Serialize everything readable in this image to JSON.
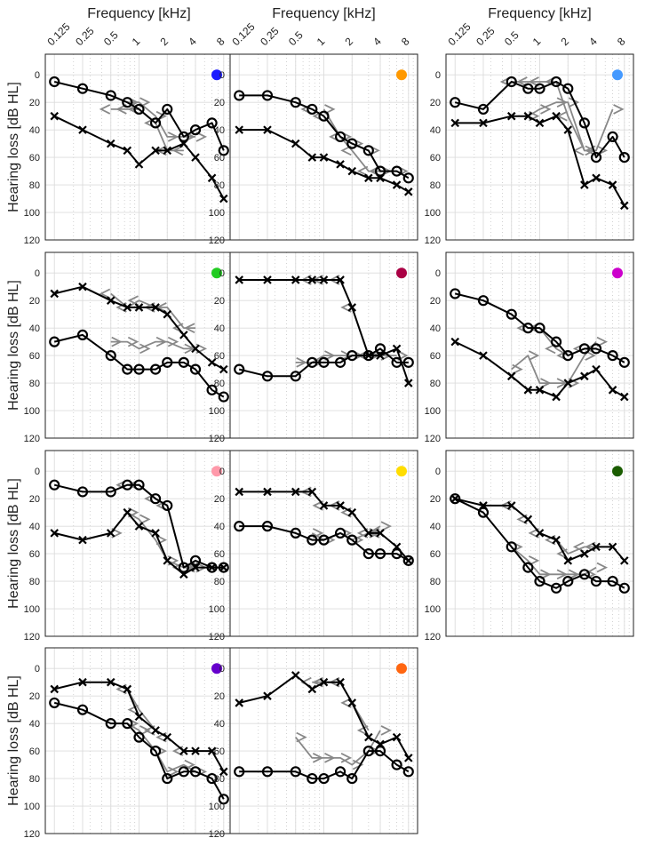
{
  "figure": {
    "x_axis_title": "Frequency [kHz]",
    "y_axis_title": "Hearing loss [dB HL]"
  },
  "chart_data": {
    "type": "line",
    "x_scale": "log",
    "xlim": [
      0.1,
      10
    ],
    "ylim": [
      120,
      -15
    ],
    "y_inverted": true,
    "grid": true,
    "x_ticks": [
      0.125,
      0.25,
      0.5,
      1,
      2,
      4,
      8
    ],
    "x_tick_labels": [
      "0.125",
      "0.25",
      "0.5",
      "1",
      "2",
      "4",
      "8"
    ],
    "y_ticks": [
      0,
      20,
      40,
      60,
      80,
      100,
      120
    ],
    "y_tick_labels": [
      "0",
      "20",
      "40",
      "60",
      "80",
      "100",
      "120"
    ],
    "panels": [
      {
        "marker_color": "#1a1aff",
        "air_o": {
          "x": [
            0.125,
            0.25,
            0.5,
            0.75,
            1,
            1.5,
            2,
            3,
            4,
            6,
            8
          ],
          "y": [
            5,
            10,
            15,
            20,
            25,
            35,
            25,
            45,
            40,
            35,
            55
          ]
        },
        "air_x": {
          "x": [
            0.125,
            0.25,
            0.5,
            0.75,
            1,
            1.5,
            2,
            3,
            4,
            6,
            8
          ],
          "y": [
            30,
            40,
            50,
            55,
            65,
            55,
            55,
            50,
            60,
            75,
            90
          ]
        },
        "bone_lt": {
          "x": [
            0.5,
            0.75,
            1,
            1.5,
            2,
            3
          ],
          "y": [
            25,
            25,
            25,
            35,
            55,
            55
          ]
        },
        "bone_gt": {
          "x": [
            0.75,
            1,
            1.5,
            2,
            3,
            4
          ],
          "y": [
            20,
            20,
            30,
            45,
            45,
            45
          ]
        }
      },
      {
        "marker_color": "#ff9900",
        "air_o": {
          "x": [
            0.125,
            0.25,
            0.5,
            0.75,
            1,
            1.5,
            2,
            3,
            4,
            6,
            8
          ],
          "y": [
            15,
            15,
            20,
            25,
            30,
            45,
            50,
            55,
            70,
            70,
            75
          ]
        },
        "air_x": {
          "x": [
            0.125,
            0.25,
            0.5,
            0.75,
            1,
            1.5,
            2,
            3,
            4,
            6,
            8
          ],
          "y": [
            40,
            40,
            50,
            60,
            60,
            65,
            70,
            75,
            75,
            80,
            85
          ]
        },
        "bone_lt": {
          "x": [
            0.75,
            1,
            1.5,
            2,
            3,
            4
          ],
          "y": [
            25,
            30,
            45,
            55,
            70,
            70
          ]
        },
        "bone_gt": {
          "x": [
            1,
            1.5,
            2,
            3,
            4,
            6
          ],
          "y": [
            25,
            45,
            50,
            55,
            70,
            70
          ]
        }
      },
      {
        "marker_color": "#4499ff",
        "air_o": {
          "x": [
            0.125,
            0.25,
            0.5,
            0.75,
            1,
            1.5,
            2,
            3,
            4,
            6,
            8
          ],
          "y": [
            20,
            25,
            5,
            10,
            10,
            5,
            10,
            35,
            60,
            45,
            60
          ]
        },
        "air_x": {
          "x": [
            0.125,
            0.25,
            0.5,
            0.75,
            1,
            1.5,
            2,
            3,
            4,
            6,
            8
          ],
          "y": [
            35,
            35,
            30,
            30,
            35,
            30,
            40,
            80,
            75,
            80,
            95
          ]
        },
        "bone_lt": {
          "x": [
            0.5,
            0.75,
            1,
            1.5,
            2,
            3,
            4
          ],
          "y": [
            5,
            5,
            5,
            5,
            30,
            55,
            55
          ]
        },
        "bone_gt": {
          "x": [
            0.75,
            1,
            1.5,
            2,
            3,
            4,
            6
          ],
          "y": [
            30,
            25,
            20,
            20,
            55,
            55,
            25
          ]
        }
      },
      {
        "marker_color": "#22cc22",
        "air_o": {
          "x": [
            0.125,
            0.25,
            0.5,
            0.75,
            1,
            1.5,
            2,
            3,
            4,
            6,
            8
          ],
          "y": [
            50,
            45,
            60,
            70,
            70,
            70,
            65,
            65,
            70,
            85,
            90
          ]
        },
        "air_x": {
          "x": [
            0.125,
            0.25,
            0.5,
            0.75,
            1,
            1.5,
            2,
            3,
            4,
            6,
            8
          ],
          "y": [
            15,
            10,
            20,
            25,
            25,
            25,
            30,
            45,
            55,
            65,
            70
          ]
        },
        "bone_lt": {
          "x": [
            0.5,
            0.75,
            1,
            1.5,
            2,
            3,
            4
          ],
          "y": [
            15,
            25,
            20,
            25,
            25,
            40,
            40
          ]
        },
        "bone_gt": {
          "x": [
            0.5,
            0.75,
            1,
            1.5,
            2,
            3,
            4
          ],
          "y": [
            50,
            50,
            55,
            50,
            50,
            55,
            55
          ]
        }
      },
      {
        "marker_color": "#aa0044",
        "air_o": {
          "x": [
            0.125,
            0.25,
            0.5,
            0.75,
            1,
            1.5,
            2,
            3,
            4,
            6,
            8
          ],
          "y": [
            70,
            75,
            75,
            65,
            65,
            65,
            60,
            60,
            55,
            65,
            65
          ]
        },
        "air_x": {
          "x": [
            0.125,
            0.25,
            0.5,
            0.75,
            1,
            1.5,
            2,
            3,
            4,
            6,
            8
          ],
          "y": [
            5,
            5,
            5,
            5,
            5,
            5,
            25,
            60,
            60,
            55,
            80
          ]
        },
        "bone_lt": {
          "x": [
            0.75,
            1,
            1.5,
            2,
            3
          ],
          "y": [
            5,
            5,
            5,
            25,
            60
          ]
        },
        "bone_gt": {
          "x": [
            0.5,
            0.75,
            1,
            1.5,
            2,
            3,
            4,
            6
          ],
          "y": [
            65,
            65,
            60,
            60,
            60,
            60,
            60,
            60
          ]
        }
      },
      {
        "marker_color": "#cc00cc",
        "air_o": {
          "x": [
            0.125,
            0.25,
            0.5,
            0.75,
            1,
            1.5,
            2,
            3,
            4,
            6,
            8
          ],
          "y": [
            15,
            20,
            30,
            40,
            40,
            50,
            60,
            55,
            55,
            60,
            65
          ]
        },
        "air_x": {
          "x": [
            0.125,
            0.25,
            0.5,
            0.75,
            1,
            1.5,
            2,
            3,
            4,
            6,
            8
          ],
          "y": [
            50,
            60,
            75,
            85,
            85,
            90,
            80,
            75,
            70,
            85,
            90
          ]
        },
        "bone_lt": {
          "x": [
            0.75,
            1,
            1.5,
            2,
            3,
            4
          ],
          "y": [
            40,
            40,
            55,
            60,
            55,
            55
          ]
        },
        "bone_gt": {
          "x": [
            0.5,
            0.75,
            1,
            1.5,
            2,
            3,
            4
          ],
          "y": [
            70,
            60,
            80,
            80,
            80,
            60,
            50
          ]
        }
      },
      {
        "marker_color": "#ff99aa",
        "air_o": {
          "x": [
            0.125,
            0.25,
            0.5,
            0.75,
            1,
            1.5,
            2,
            3,
            4,
            6,
            8
          ],
          "y": [
            10,
            15,
            15,
            10,
            10,
            20,
            25,
            70,
            65,
            70,
            70
          ]
        },
        "air_x": {
          "x": [
            0.125,
            0.25,
            0.5,
            0.75,
            1,
            1.5,
            2,
            3,
            4,
            6,
            8
          ],
          "y": [
            45,
            50,
            45,
            30,
            40,
            45,
            65,
            75,
            70,
            70,
            70
          ]
        },
        "bone_lt": {
          "x": [
            0.75,
            1,
            1.5,
            2,
            3,
            4
          ],
          "y": [
            10,
            10,
            20,
            25,
            70,
            70
          ]
        },
        "bone_gt": {
          "x": [
            0.5,
            0.75,
            1,
            1.5,
            2,
            3,
            4
          ],
          "y": [
            45,
            30,
            35,
            50,
            65,
            70,
            70
          ]
        }
      },
      {
        "marker_color": "#ffdd00",
        "air_o": {
          "x": [
            0.125,
            0.25,
            0.5,
            0.75,
            1,
            1.5,
            2,
            3,
            4,
            6,
            8
          ],
          "y": [
            40,
            40,
            45,
            50,
            50,
            45,
            50,
            60,
            60,
            60,
            65
          ]
        },
        "air_x": {
          "x": [
            0.125,
            0.25,
            0.5,
            0.75,
            1,
            1.5,
            2,
            3,
            4,
            6,
            8
          ],
          "y": [
            15,
            15,
            15,
            15,
            25,
            25,
            30,
            45,
            45,
            55,
            65
          ]
        },
        "bone_lt": {
          "x": [
            0.75,
            1,
            1.5,
            2,
            3,
            4
          ],
          "y": [
            15,
            25,
            25,
            30,
            45,
            45
          ]
        },
        "bone_gt": {
          "x": [
            0.75,
            1,
            1.5,
            2,
            3,
            4
          ],
          "y": [
            45,
            50,
            45,
            50,
            45,
            40
          ]
        }
      },
      {
        "marker_color": "#1a5c00",
        "air_o": {
          "x": [
            0.125,
            0.25,
            0.5,
            0.75,
            1,
            1.5,
            2,
            3,
            4,
            6,
            8
          ],
          "y": [
            20,
            30,
            55,
            70,
            80,
            85,
            80,
            75,
            80,
            80,
            85
          ]
        },
        "air_x": {
          "x": [
            0.125,
            0.25,
            0.5,
            0.75,
            1,
            1.5,
            2,
            3,
            4,
            6,
            8
          ],
          "y": [
            20,
            25,
            25,
            35,
            45,
            50,
            65,
            60,
            55,
            55,
            65
          ]
        },
        "bone_lt": {
          "x": [
            0.5,
            0.75,
            1,
            1.5,
            2,
            3,
            4
          ],
          "y": [
            25,
            35,
            45,
            50,
            60,
            55,
            55
          ]
        },
        "bone_gt": {
          "x": [
            0.5,
            0.75,
            1,
            1.5,
            2,
            3,
            4
          ],
          "y": [
            55,
            65,
            75,
            75,
            75,
            75,
            70
          ]
        }
      },
      {
        "marker_color": "#6600cc",
        "air_o": {
          "x": [
            0.125,
            0.25,
            0.5,
            0.75,
            1,
            1.5,
            2,
            3,
            4,
            6,
            8
          ],
          "y": [
            25,
            30,
            40,
            40,
            50,
            60,
            80,
            75,
            75,
            80,
            95
          ]
        },
        "air_x": {
          "x": [
            0.125,
            0.25,
            0.5,
            0.75,
            1,
            1.5,
            2,
            3,
            4,
            6,
            8
          ],
          "y": [
            15,
            10,
            10,
            15,
            35,
            45,
            50,
            60,
            60,
            60,
            75
          ]
        },
        "bone_lt": {
          "x": [
            0.75,
            1,
            1.5,
            2,
            3
          ],
          "y": [
            15,
            30,
            45,
            50,
            60
          ]
        },
        "bone_gt": {
          "x": [
            0.75,
            1,
            1.5,
            2,
            3,
            4
          ],
          "y": [
            40,
            45,
            60,
            75,
            70,
            75
          ]
        }
      },
      {
        "marker_color": "#ff6611",
        "air_o": {
          "x": [
            0.125,
            0.25,
            0.5,
            0.75,
            1,
            1.5,
            2,
            3,
            4,
            6,
            8
          ],
          "y": [
            75,
            75,
            75,
            80,
            80,
            75,
            80,
            60,
            60,
            70,
            75
          ]
        },
        "air_x": {
          "x": [
            0.125,
            0.25,
            0.5,
            0.75,
            1,
            1.5,
            2,
            3,
            4,
            6,
            8
          ],
          "y": [
            25,
            20,
            5,
            15,
            10,
            10,
            25,
            50,
            55,
            50,
            65
          ]
        },
        "bone_lt": {
          "x": [
            0.75,
            1,
            1.5,
            2,
            3
          ],
          "y": [
            10,
            10,
            10,
            25,
            45
          ]
        },
        "bone_gt": {
          "x": [
            0.5,
            0.75,
            1,
            1.5,
            2,
            3,
            4
          ],
          "y": [
            50,
            65,
            65,
            65,
            70,
            60,
            45
          ]
        }
      }
    ]
  }
}
